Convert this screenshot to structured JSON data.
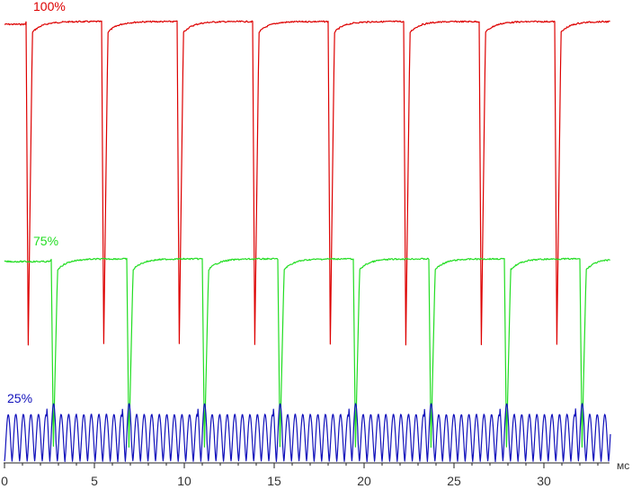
{
  "chart_data": {
    "type": "line",
    "x_unit": "мс",
    "xlim": [
      0,
      33.7
    ],
    "xticks": [
      0,
      5,
      10,
      15,
      20,
      25,
      30
    ],
    "tick_labels": [
      "0",
      "5",
      "10",
      "15",
      "20",
      "25",
      "30"
    ],
    "grid": false,
    "series": [
      {
        "name": "100%",
        "color": "#dd0000",
        "dip_times_ms": [
          1.2,
          5.4,
          9.6,
          13.8,
          18.0,
          22.2,
          26.4,
          30.6
        ],
        "high_level": 1.0,
        "dip_level": 0.0
      },
      {
        "name": "75%",
        "color": "#22dd22",
        "dip_times_ms": [
          2.6,
          6.8,
          11.0,
          15.2,
          19.4,
          23.6,
          27.8,
          32.0
        ],
        "high_level": 1.0,
        "dip_level": 0.0
      },
      {
        "name": "25%",
        "color": "#1111bb",
        "oscillation_period_ms": 0.42,
        "peak_level": 1.0,
        "trough_level": 0.0
      }
    ]
  }
}
